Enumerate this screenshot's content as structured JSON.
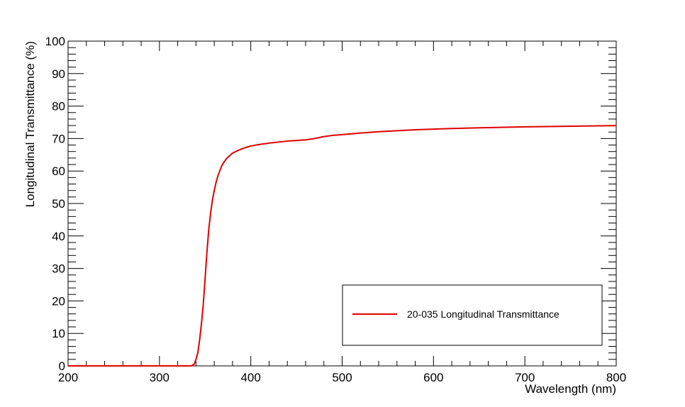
{
  "chart_data": {
    "type": "line",
    "title": "",
    "xlabel": "Wavelength (nm)",
    "ylabel": "Longitudinal Transmittance (%)",
    "xlim": [
      200,
      800
    ],
    "ylim": [
      0,
      100
    ],
    "x_ticks": [
      200,
      300,
      400,
      500,
      600,
      700,
      800
    ],
    "y_ticks": [
      0,
      10,
      20,
      30,
      40,
      50,
      60,
      70,
      80,
      90,
      100
    ],
    "grid": false,
    "legend_position": "bottom-right",
    "series": [
      {
        "name": "20-035 Longitudinal Transmittance",
        "color": "#e00000",
        "x": [
          200,
          300,
          335,
          338,
          340,
          342,
          344,
          346,
          348,
          350,
          352,
          354,
          356,
          358,
          360,
          362,
          364,
          366,
          368,
          370,
          372,
          374,
          376,
          378,
          380,
          385,
          390,
          395,
          400,
          410,
          420,
          430,
          440,
          450,
          460,
          470,
          480,
          490,
          500,
          520,
          540,
          560,
          580,
          600,
          620,
          650,
          700,
          750,
          800
        ],
        "y": [
          0,
          0,
          0,
          0.5,
          2,
          4,
          8,
          13,
          19,
          27,
          35,
          42,
          47,
          51,
          54,
          56.5,
          58.5,
          60,
          61.5,
          62.5,
          63.3,
          64,
          64.5,
          65,
          65.5,
          66.2,
          66.8,
          67.3,
          67.7,
          68.2,
          68.6,
          68.9,
          69.2,
          69.4,
          69.6,
          70,
          70.6,
          71,
          71.2,
          71.7,
          72.1,
          72.4,
          72.7,
          72.9,
          73.1,
          73.3,
          73.6,
          73.8,
          74
        ]
      }
    ]
  }
}
